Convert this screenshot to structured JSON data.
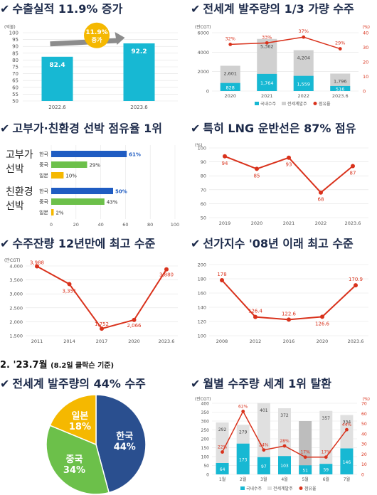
{
  "section_header": {
    "main": "2. '23.7월",
    "sub": "(8.2일 클락슨 기준)"
  },
  "colors": {
    "cyan": "#17b8d3",
    "gray": "#d0d0d0",
    "red": "#d9321c",
    "blue_navy": "#2a4f8f",
    "green": "#6cc04a",
    "yellow": "#f5b800",
    "bar_blue": "#1f5cc2",
    "title": "#1c2a4a"
  },
  "chart_data": [
    {
      "id": "p1",
      "type": "bar",
      "title": "수출실적 11.9% 증가",
      "unit": "(억불)",
      "categories": [
        "2022.6",
        "2023.6"
      ],
      "values": [
        82.4,
        92.2
      ],
      "ylim": [
        50,
        100
      ],
      "yticks": [
        50,
        55,
        60,
        65,
        70,
        75,
        80,
        85,
        90,
        95,
        100
      ],
      "annotation": {
        "line1": "11.9%",
        "line2": "증가"
      }
    },
    {
      "id": "p2",
      "type": "bar",
      "title": "전세계 발주량의 1/3 가량 수주",
      "unit_left": "(만CGT)",
      "unit_right": "(%)",
      "categories": [
        "2020",
        "2021",
        "2022",
        "2023.6"
      ],
      "series": [
        {
          "name": "국내수주",
          "values": [
            828,
            1764,
            1559,
            516
          ]
        },
        {
          "name": "전세계발주",
          "values": [
            2601,
            5362,
            4204,
            1796
          ]
        },
        {
          "name": "점유율",
          "values": [
            32,
            33,
            37,
            29
          ],
          "labels": [
            "32%",
            "33%",
            "37%",
            "29%"
          ]
        }
      ],
      "ylim": [
        0,
        6000
      ],
      "yticks": [
        0,
        2000,
        4000,
        6000
      ],
      "ylim_right": [
        0,
        40
      ],
      "yticks_right": [
        0,
        10,
        20,
        30,
        40
      ]
    },
    {
      "id": "p3",
      "type": "bar",
      "title": "고부가·친환경 선박 점유율 1위",
      "groups": [
        {
          "name": "고부가 선박",
          "items": [
            {
              "label": "한국",
              "value": 61
            },
            {
              "label": "중국",
              "value": 29
            },
            {
              "label": "일본",
              "value": 10
            }
          ]
        },
        {
          "name": "친환경 선박",
          "items": [
            {
              "label": "한국",
              "value": 50
            },
            {
              "label": "중국",
              "value": 43
            },
            {
              "label": "일본",
              "value": 2
            }
          ]
        }
      ],
      "xlim": [
        0,
        100
      ],
      "xticks": [
        0,
        20,
        40,
        60,
        80,
        100
      ]
    },
    {
      "id": "p4",
      "type": "line",
      "title": "특히 LNG 운반선은 87% 점유",
      "unit": "(%)",
      "categories": [
        "2019",
        "2020",
        "2021",
        "2022",
        "2023.6"
      ],
      "values": [
        94,
        85,
        93,
        68,
        87
      ],
      "ylim": [
        50,
        100
      ],
      "yticks": [
        50,
        60,
        70,
        80,
        90,
        100
      ]
    },
    {
      "id": "p5",
      "type": "line",
      "title": "수주잔량 12년만에 최고 수준",
      "unit": "(만CGT)",
      "categories": [
        "2011",
        "2014",
        "2017",
        "2020",
        "2023.6"
      ],
      "values": [
        3988,
        3351,
        1752,
        2066,
        3880
      ],
      "value_labels": [
        "3,988",
        "3,351",
        "1,752",
        "2,066",
        "3,880"
      ],
      "ylim": [
        1500,
        4000
      ],
      "yticks": [
        1500,
        2000,
        2500,
        3000,
        3500,
        4000
      ],
      "ytick_labels": [
        "1,500",
        "2,000",
        "2,500",
        "3,000",
        "3,500",
        "4,000"
      ]
    },
    {
      "id": "p6",
      "type": "line",
      "title": "선가지수 '08년 이래 최고 수준",
      "categories": [
        "2008",
        "2012",
        "2016",
        "2020",
        "2023.6"
      ],
      "values": [
        178,
        126.4,
        122.6,
        126.6,
        170.9
      ],
      "value_labels": [
        "178",
        "126.4",
        "122.6",
        "126.6",
        "170.9"
      ],
      "ylim": [
        100,
        200
      ],
      "yticks": [
        100,
        120,
        140,
        160,
        180,
        200
      ]
    },
    {
      "id": "p7",
      "type": "pie",
      "title": "전세계 발주량의 44% 수주",
      "slices": [
        {
          "label": "한국",
          "value": 44,
          "text": "44%"
        },
        {
          "label": "중국",
          "value": 34,
          "text": "34%"
        },
        {
          "label": "일본",
          "value": 18,
          "text": "18%"
        }
      ]
    },
    {
      "id": "p8",
      "type": "bar",
      "title": "월별 수주량 세계 1위 탈환",
      "unit_left": "(만CGT)",
      "unit_right": "(%)",
      "categories": [
        "1월",
        "2월",
        "3월",
        "4월",
        "5월",
        "6월",
        "7월"
      ],
      "series": [
        {
          "name": "국내수주",
          "values": [
            64,
            173,
            97,
            103,
            51,
            59,
            146
          ]
        },
        {
          "name": "전세계발주",
          "values": [
            292,
            279,
            401,
            372,
            300,
            357,
            334
          ]
        },
        {
          "name": "점유율",
          "values": [
            22,
            62,
            24,
            28,
            17,
            17,
            44
          ],
          "labels": [
            "22%",
            "62%",
            "24%",
            "28%",
            "17%",
            "17%",
            "44%"
          ]
        }
      ],
      "labels_kr": [
        "64",
        "173",
        "97",
        "103",
        "51",
        "59",
        "146"
      ],
      "labels_world": [
        "292",
        "279",
        "401",
        "372",
        "",
        "357",
        "334"
      ],
      "ylim": [
        0,
        400
      ],
      "yticks": [
        0,
        50,
        100,
        150,
        200,
        250,
        300,
        350,
        400
      ],
      "ylim_right": [
        0,
        70
      ],
      "yticks_right": [
        0,
        10,
        20,
        30,
        40,
        50,
        60,
        70
      ]
    }
  ]
}
